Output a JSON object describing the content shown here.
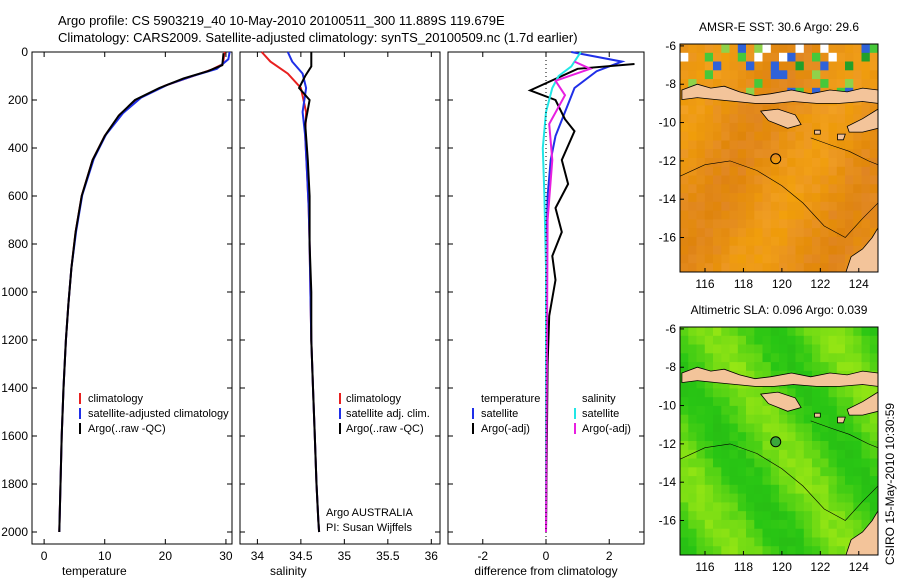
{
  "header": {
    "line1": "Argo profile: CS 5903219_40 10-May-2010 20100511_300 11.889S 119.679E",
    "line2": "Climatology: CARS2009. Satellite-adjusted climatology: synTS_20100509.nc (1.7d earlier)"
  },
  "side_label": "CSIRO 15-May-2010 10:30:59",
  "colors": {
    "red": "#e8201f",
    "blue": "#1f2fe8",
    "black": "#000000",
    "cyan": "#22e6e6",
    "magenta": "#e81fe0",
    "sea": "#e08a12",
    "land": "#f3c49a",
    "sla_green": "#3ec81c"
  },
  "chart_data": [
    {
      "type": "line",
      "id": "temperature",
      "xlabel": "temperature",
      "xlim": [
        -2,
        31
      ],
      "ylim": [
        2050,
        0
      ],
      "xticks": [
        "0",
        "10",
        "20",
        "30"
      ],
      "yticks": [
        "0",
        "200",
        "400",
        "600",
        "800",
        "1000",
        "1200",
        "1400",
        "1600",
        "1800",
        "2000"
      ],
      "legend": {
        "entries": [
          "climatology",
          "satellite-adjusted climatology",
          "Argo(..raw -QC)"
        ],
        "colors": [
          "#e8201f",
          "#1f2fe8",
          "#000000"
        ]
      },
      "series": [
        {
          "name": "climatology",
          "color": "#e8201f",
          "x": [
            29.8,
            29.5,
            27.5,
            24,
            20,
            15.5,
            12.5,
            10,
            8,
            6.2,
            5.2,
            4.5,
            4,
            3.6,
            3.2,
            2.9,
            2.7,
            2.6,
            2.5
          ],
          "y": [
            0,
            50,
            75,
            105,
            140,
            195,
            260,
            350,
            450,
            600,
            750,
            900,
            1050,
            1200,
            1400,
            1600,
            1800,
            1900,
            2000
          ]
        },
        {
          "name": "satellite-adjusted climatology",
          "color": "#1f2fe8",
          "x": [
            30.6,
            30.4,
            28.5,
            24.5,
            20.5,
            16,
            13,
            10.2,
            8.2,
            6.3,
            5.3,
            4.5,
            4,
            3.6,
            3.2,
            2.9,
            2.7,
            2.6,
            2.5
          ],
          "y": [
            0,
            30,
            70,
            100,
            135,
            190,
            255,
            345,
            445,
            595,
            745,
            900,
            1050,
            1200,
            1400,
            1600,
            1800,
            1900,
            2000
          ]
        },
        {
          "name": "Argo(..raw -QC)",
          "color": "#000000",
          "x": [
            29.6,
            29.4,
            27,
            23,
            19,
            15,
            12.3,
            10,
            8,
            6.2,
            5.2,
            4.5,
            4,
            3.6,
            3.2,
            2.9,
            2.7,
            2.6,
            2.5
          ],
          "y": [
            5,
            55,
            80,
            110,
            150,
            200,
            265,
            350,
            450,
            600,
            750,
            900,
            1050,
            1200,
            1400,
            1600,
            1800,
            1900,
            2000
          ]
        }
      ]
    },
    {
      "type": "line",
      "id": "salinity",
      "xlabel": "salinity",
      "xlim": [
        33.8,
        36.1
      ],
      "ylim": [
        2050,
        0
      ],
      "xticks": [
        "34",
        "34.5",
        "35",
        "35.5",
        "36"
      ],
      "legend": {
        "entries": [
          "climatology",
          "satellite adj. clim.",
          "Argo(..raw -QC)"
        ],
        "colors": [
          "#e8201f",
          "#1f2fe8",
          "#000000"
        ]
      },
      "annotation": [
        "Argo AUSTRALIA",
        "PI: Susan Wijffels"
      ],
      "series": [
        {
          "name": "climatology",
          "color": "#e8201f",
          "x": [
            34.05,
            34.15,
            34.35,
            34.5,
            34.56,
            34.55,
            34.57,
            34.59,
            34.6,
            34.61,
            34.62,
            34.64,
            34.66,
            34.68,
            34.7,
            34.71
          ],
          "y": [
            0,
            40,
            90,
            150,
            250,
            350,
            500,
            650,
            800,
            1000,
            1200,
            1400,
            1600,
            1800,
            1950,
            2000
          ]
        },
        {
          "name": "satellite adj. clim.",
          "color": "#1f2fe8",
          "x": [
            34.35,
            34.4,
            34.52,
            34.56,
            34.52,
            34.55,
            34.57,
            34.59,
            34.6,
            34.61,
            34.62,
            34.64,
            34.66,
            34.68,
            34.7,
            34.71
          ],
          "y": [
            0,
            40,
            90,
            150,
            250,
            350,
            500,
            650,
            800,
            1000,
            1200,
            1400,
            1600,
            1800,
            1950,
            2000
          ]
        },
        {
          "name": "Argo(..raw -QC)",
          "color": "#000000",
          "x": [
            34.62,
            34.62,
            34.55,
            34.48,
            34.6,
            34.55,
            34.58,
            34.6,
            34.6,
            34.62,
            34.62,
            34.64,
            34.66,
            34.68,
            34.7,
            34.71
          ],
          "y": [
            0,
            60,
            100,
            150,
            200,
            300,
            450,
            600,
            800,
            1000,
            1200,
            1400,
            1600,
            1800,
            1950,
            2000
          ]
        }
      ]
    },
    {
      "type": "line",
      "id": "difference",
      "xlabel": "difference from climatology",
      "xlim": [
        -3.1,
        3.1
      ],
      "ylim": [
        2050,
        0
      ],
      "xticks": [
        "-2",
        "0",
        "2"
      ],
      "legend_left": {
        "title": "temperature",
        "entries": [
          "satellite",
          "Argo(-adj)"
        ],
        "colors": [
          "#1f2fe8",
          "#000000"
        ]
      },
      "legend_right": {
        "title": "salinity",
        "entries": [
          "satellite",
          "Argo(-adj)"
        ],
        "colors": [
          "#22e6e6",
          "#e81fe0"
        ]
      },
      "series": [
        {
          "name": "temperature satellite",
          "color": "#1f2fe8",
          "x": [
            0.8,
            2.4,
            1.6,
            0.9,
            0.6,
            0.3,
            0.15,
            0.05,
            0.02,
            0
          ],
          "y": [
            0,
            40,
            80,
            150,
            250,
            350,
            450,
            600,
            800,
            2000
          ]
        },
        {
          "name": "temperature Argo(-adj)",
          "color": "#000000",
          "x": [
            2.8,
            1,
            -0.5,
            0.3,
            0.6,
            0.9,
            0.5,
            0.7,
            0.3,
            0.5,
            0.2,
            0.3,
            0.1,
            0.05,
            0
          ],
          "y": [
            50,
            70,
            160,
            200,
            280,
            330,
            450,
            550,
            650,
            750,
            850,
            950,
            1100,
            1300,
            2000
          ]
        },
        {
          "name": "salinity satellite",
          "color": "#22e6e6",
          "x": [
            1.1,
            0.8,
            0.4,
            0.2,
            0,
            -0.1,
            -0.05,
            0,
            0
          ],
          "y": [
            0,
            60,
            100,
            150,
            250,
            400,
            600,
            900,
            2000
          ]
        },
        {
          "name": "salinity Argo(-adj)",
          "color": "#e81fe0",
          "x": [
            0.9,
            1.4,
            0.3,
            0.6,
            0.1,
            0.2,
            0.05,
            0
          ],
          "y": [
            40,
            70,
            120,
            180,
            300,
            450,
            700,
            2000
          ]
        }
      ]
    },
    {
      "type": "heatmap",
      "id": "sst_map",
      "title": "AMSR-E SST: 30.6  Argo: 29.6",
      "xlim": [
        114.7,
        125.0
      ],
      "ylim": [
        -17.8,
        -5.9
      ],
      "xticks": [
        "116",
        "118",
        "120",
        "122",
        "124"
      ],
      "yticks": [
        "-6",
        "-8",
        "-10",
        "-12",
        "-14",
        "-16"
      ],
      "marker": {
        "lon": 119.68,
        "lat": -11.89
      }
    },
    {
      "type": "heatmap",
      "id": "sla_map",
      "title": "Altimetric SLA: 0.096  Argo: 0.039",
      "xlim": [
        114.7,
        125.0
      ],
      "ylim": [
        -17.8,
        -5.9
      ],
      "xticks": [
        "116",
        "118",
        "120",
        "122",
        "124"
      ],
      "yticks": [
        "-6",
        "-8",
        "-10",
        "-12",
        "-14",
        "-16"
      ],
      "marker": {
        "lon": 119.68,
        "lat": -11.89
      }
    }
  ]
}
